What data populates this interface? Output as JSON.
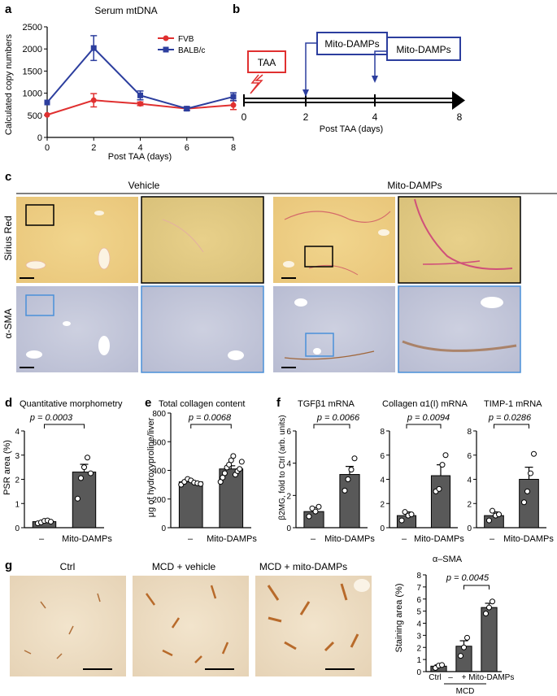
{
  "panel_labels": {
    "a": "a",
    "b": "b",
    "c": "c",
    "d": "d",
    "e": "e",
    "f": "f",
    "g": "g"
  },
  "panel_a": {
    "title": "Serum mtDNA",
    "ylabel": "Calculated copy numbers",
    "xlabel": "Post TAA (days)",
    "legend_fvb": "FVB",
    "legend_balb": "BALB/c",
    "colors": {
      "FVB": "#e03030",
      "BALB/c": "#2c3e9e"
    }
  },
  "panel_b": {
    "taa_label": "TAA",
    "mito1_label": "Mito-DAMPs",
    "mito2_label": "Mito-DAMPs",
    "ticks": [
      "0",
      "2",
      "4",
      "8"
    ],
    "xlabel": "Post TAA (days)",
    "colors": {
      "taa_box": "#e03030",
      "mito_box": "#2c3e9e"
    }
  },
  "panel_c": {
    "vehicle_label": "Vehicle",
    "mito_label": "Mito-DAMPs",
    "row1_label": "Sirius Red",
    "row2_label": "α-SMA"
  },
  "panel_d": {
    "title": "Quantitative morphometry",
    "ylabel": "PSR area (%)",
    "pval": "p = 0.0003",
    "cat1": "–",
    "cat2": "Mito-DAMPs"
  },
  "panel_e": {
    "title": "Total collagen content",
    "ylabel": "μg of hydroxyproline/liver",
    "pval": "p = 0.0068",
    "cat1": "–",
    "cat2": "Mito-DAMPs"
  },
  "panel_f": {
    "ylabel": "β2MG, fold to Ctrl (arb. units)",
    "sub1": {
      "title": "TGFβ1 mRNA",
      "pval": "p = 0.0066",
      "cat1": "–",
      "cat2": "Mito-DAMPs"
    },
    "sub2": {
      "title": "Collagen α1(I) mRNA",
      "pval": "p = 0.0094",
      "cat1": "–",
      "cat2": "Mito-DAMPs"
    },
    "sub3": {
      "title": "TIMP-1 mRNA",
      "pval": "p = 0.0286",
      "cat1": "–",
      "cat2": "Mito-DAMPs"
    }
  },
  "panel_g": {
    "img1_label": "Ctrl",
    "img2_label": "MCD + vehicle",
    "img3_label": "MCD + mito-DAMPs",
    "chart_title": "α–SMA",
    "ylabel": "Staining area (%)",
    "pval": "p = 0.0045",
    "cat1": "Ctrl",
    "cat2": "–",
    "cat3": "+ Mito-DAMPs",
    "group_label": "MCD"
  },
  "chart_data": [
    {
      "id": "a",
      "type": "line",
      "title": "Serum mtDNA",
      "xlabel": "Post TAA (days)",
      "ylabel": "Calculated copy numbers",
      "x": [
        0,
        2,
        4,
        6,
        8
      ],
      "xlim": [
        0,
        8
      ],
      "ylim": [
        0,
        2500
      ],
      "xticks": [
        0,
        2,
        4,
        6,
        8
      ],
      "yticks": [
        0,
        500,
        1000,
        1500,
        2000,
        2500
      ],
      "series": [
        {
          "name": "FVB",
          "values": [
            510,
            840,
            760,
            650,
            730
          ],
          "errors": [
            0,
            150,
            40,
            40,
            100
          ],
          "color": "#e03030"
        },
        {
          "name": "BALB/c",
          "values": [
            790,
            2020,
            950,
            650,
            920
          ],
          "errors": [
            0,
            280,
            100,
            40,
            90
          ],
          "color": "#2c3e9e"
        }
      ]
    },
    {
      "id": "d",
      "type": "bar",
      "title": "Quantitative morphometry",
      "ylabel": "PSR area (%)",
      "categories": [
        "–",
        "Mito-DAMPs"
      ],
      "values": [
        0.25,
        2.3
      ],
      "errors": [
        0.04,
        0.32
      ],
      "ylim": [
        0,
        4
      ],
      "yticks": [
        0,
        1,
        2,
        3,
        4
      ],
      "points": [
        [
          0.18,
          0.22,
          0.28,
          0.3,
          0.25
        ],
        [
          1.2,
          2.05,
          2.5,
          2.9,
          2.25
        ]
      ],
      "annotation": "p = 0.0003"
    },
    {
      "id": "e",
      "type": "bar",
      "title": "Total collagen content",
      "ylabel": "μg of hydroxyproline/liver",
      "categories": [
        "–",
        "Mito-DAMPs"
      ],
      "values": [
        320,
        410
      ],
      "errors": [
        10,
        22
      ],
      "ylim": [
        0,
        800
      ],
      "yticks": [
        0,
        200,
        400,
        600,
        800
      ],
      "points": [
        [
          300,
          320,
          340,
          330,
          315,
          310,
          305
        ],
        [
          320,
          350,
          380,
          420,
          440,
          470,
          500,
          370,
          395,
          410,
          460
        ]
      ],
      "annotation": "p = 0.0068"
    },
    {
      "id": "f1",
      "type": "bar",
      "title": "TGFβ1 mRNA",
      "ylabel": "β2MG, fold to Ctrl (arb. units)",
      "categories": [
        "–",
        "Mito-DAMPs"
      ],
      "values": [
        1.0,
        3.3
      ],
      "errors": [
        0.25,
        0.5
      ],
      "ylim": [
        0,
        6
      ],
      "yticks": [
        0,
        2,
        4,
        6
      ],
      "points": [
        [
          0.7,
          1.2,
          1.0,
          1.3
        ],
        [
          2.3,
          3.0,
          3.6,
          4.3
        ]
      ],
      "annotation": "p = 0.0066"
    },
    {
      "id": "f2",
      "type": "bar",
      "title": "Collagen α1(I) mRNA",
      "categories": [
        "–",
        "Mito-DAMPs"
      ],
      "values": [
        1.0,
        4.3
      ],
      "errors": [
        0.3,
        0.9
      ],
      "ylim": [
        0,
        8
      ],
      "yticks": [
        0,
        2,
        4,
        6,
        8
      ],
      "points": [
        [
          0.6,
          1.3,
          1.0,
          1.1
        ],
        [
          3.0,
          3.2,
          5.2,
          6.0
        ]
      ],
      "annotation": "p = 0.0094"
    },
    {
      "id": "f3",
      "type": "bar",
      "title": "TIMP-1 mRNA",
      "categories": [
        "–",
        "Mito-DAMPs"
      ],
      "values": [
        1.0,
        4.0
      ],
      "errors": [
        0.3,
        1.0
      ],
      "ylim": [
        0,
        8
      ],
      "yticks": [
        0,
        2,
        4,
        6,
        8
      ],
      "points": [
        [
          0.6,
          1.4,
          1.0,
          1.1
        ],
        [
          2.1,
          3.0,
          4.5,
          6.1
        ]
      ],
      "annotation": "p = 0.0286"
    },
    {
      "id": "g",
      "type": "bar",
      "title": "α–SMA",
      "ylabel": "Staining area (%)",
      "categories": [
        "Ctrl",
        "–",
        "+ Mito-DAMPs"
      ],
      "values": [
        0.45,
        2.1,
        5.3
      ],
      "errors": [
        0.1,
        0.45,
        0.35
      ],
      "ylim": [
        0,
        8
      ],
      "yticks": [
        0,
        1,
        2,
        3,
        4,
        5,
        6,
        7,
        8
      ],
      "points": [
        [
          0.3,
          0.5,
          0.55
        ],
        [
          1.3,
          2.0,
          2.8
        ],
        [
          4.8,
          5.3,
          5.8
        ]
      ],
      "group": "MCD",
      "annotation": "p = 0.0045"
    }
  ]
}
